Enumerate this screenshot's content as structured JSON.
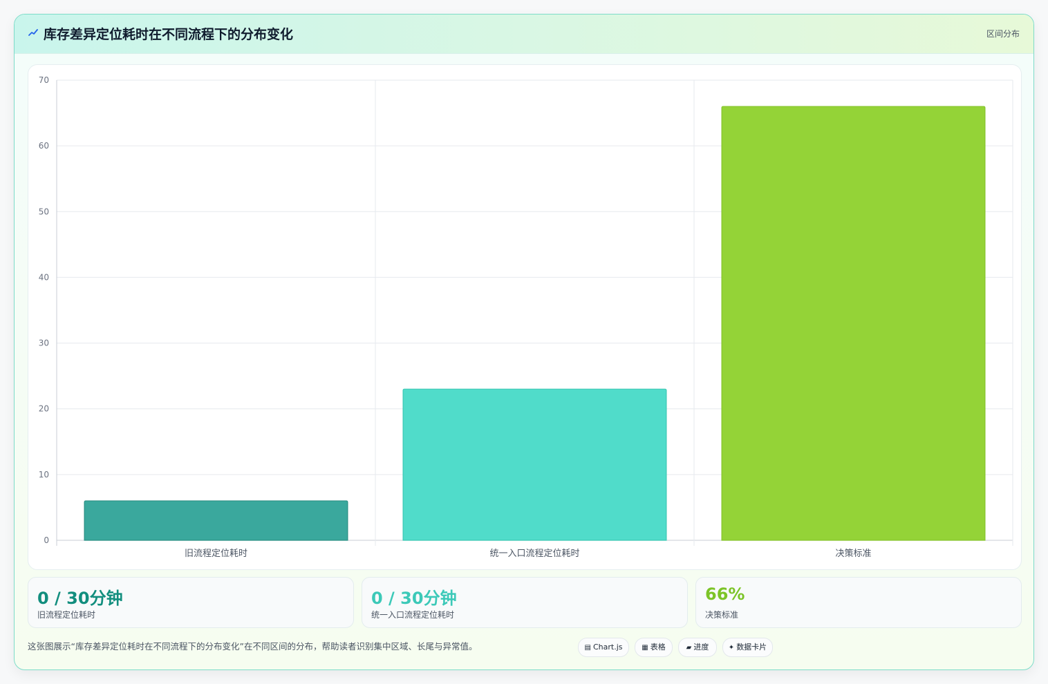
{
  "header": {
    "title": "库存差异定位耗时在不同流程下的分布变化",
    "tag": "区间分布"
  },
  "chart_data": {
    "type": "bar",
    "categories": [
      "旧流程定位耗时",
      "统一入口流程定位耗时",
      "决策标准"
    ],
    "values": [
      6,
      23,
      66
    ],
    "colors": [
      "#3aa89d",
      "#50dcca",
      "#94d337"
    ],
    "border_colors": [
      "#2a8f84",
      "#3cc8b5",
      "#86c42c"
    ],
    "ylim": [
      0,
      70
    ],
    "yticks": [
      0,
      10,
      20,
      30,
      40,
      50,
      60,
      70
    ],
    "grid": true,
    "legend": "none"
  },
  "stats": [
    {
      "value": "0 / 30分钟",
      "label": "旧流程定位耗时",
      "color": "#128e7e"
    },
    {
      "value": "0 / 30分钟",
      "label": "统一入口流程定位耗时",
      "color": "#3cc9b8"
    },
    {
      "value": "66%",
      "label": "决策标准",
      "color": "#7cc427"
    }
  ],
  "footer": {
    "description": "这张图展示“库存差异定位耗时在不同流程下的分布变化”在不同区间的分布，帮助读者识别集中区域、长尾与异常值。",
    "pills": [
      {
        "icon": "▤",
        "label": "Chart.js"
      },
      {
        "icon": "▦",
        "label": "表格"
      },
      {
        "icon": "▰",
        "label": "进度"
      },
      {
        "icon": "✦",
        "label": "数据卡片"
      }
    ]
  }
}
